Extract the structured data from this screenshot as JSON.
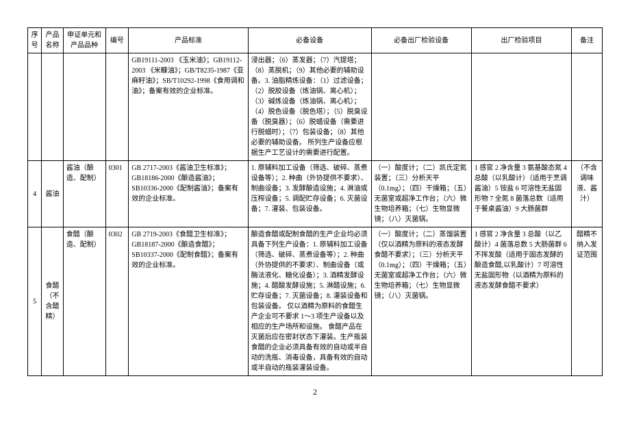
{
  "headers": {
    "seq": "序号",
    "name": "产品名称",
    "unit": "申证单元和产品品种",
    "code": "编号",
    "std": "产品标准",
    "equip": "必备设备",
    "test": "必备出厂检验设备",
    "item": "出厂检验项目",
    "note": "备注"
  },
  "rows": [
    {
      "seq": "",
      "name": "",
      "unit": "",
      "code": "",
      "std": "GB19111-2003 《玉米油》；GB19112-2003 《米糠油》；GB/T8235-1987《亚麻籽油》；SB/T10292-1998《食用调和油》；备案有效的企业标准。",
      "equip": "浸出器；（6）蒸发器；（7）汽提塔；（8）蒸脱机；（9）其他必要的辅助设备。3. 油脂精炼设备：（1）过滤设备；（2）脱胶设备（炼油锅、离心机）；（3）碱炼设备（炼油锅、离心机）；（4）脱色设备（脱色塔）；（5）脱臭设备（脱臭器）；（6）脱蜡设备（需要进行脱蜡时）；（7）包装设备；（8）其他必要的辅助设备。\n所列生产设备应根据生产工艺设计的需要进行配置。",
      "test": "",
      "item": "",
      "note": ""
    },
    {
      "seq": "4",
      "name": "酱油",
      "unit": "酱油（酿造、配制）",
      "code": "0301",
      "std": "GB 2717-2003《酱油卫生标准》；GB18186-2000《酿造酱油》；SB10336-2000《配制酱油》；备案有效的企业标准。",
      "equip": "1. 原辅料加工设备（筛选、破碎、蒸煮设备等）；2. 种曲（外协提供不要求）、制曲设备；3. 发酵酿造设施；4. 淋油或压榨设备；5. 调配贮存设备；6. 灭菌设备；7. 灌装、包装设备。",
      "test": "（一）酸度计；（二）凯氏定氮装置；（三）分析天平（0.1mg）；（四）干燥箱；（五）无菌室或超净工作台；（六）微生物培养箱；（七）生物显微镜；（八）灭菌锅。",
      "item": "1 感官 2 净含量 3 氨基酸态氮 4 总酸（以乳酸计）（适用于烹调酱油）5 铵盐 6 可溶性无盐固形物 7 全氮 8 菌落总数（适用于餐桌酱油）9 大肠菌群",
      "note": "（不含调味液、酱汁）"
    },
    {
      "seq": "5",
      "name": "食醋（不含醋精）",
      "unit": "食醋（酿造、配制）",
      "code": "0302",
      "std": "GB 2719-2003《食醋卫生标准》；GB18187-2000《酿造食醋》；SB10337-2000《配制食醋》；备案有效的企业标准。",
      "equip": "酿造食醋或配制食醋的生产企业均必须具备下列生产设备：1. 原辅料加工设备（筛选、破碎、蒸煮设备等）；2. 种曲（外协提供的不要求）、制曲设备（或酶法液化、糖化设备）；3. 酒精发酵设施；4. 醋酸发酵设施；5. 淋醋设施；6. 贮存设备；7. 灭菌设备；8. 灌装设备和包装设备。\n仅以酒精为原料的食醋生产企业可不要求 1～3 项生产设备以及相应的生产场所和设施。\n食醋产品在灭菌后应在密封状态下灌装。生产瓶装食醋的企业必须具备有效的自动或半自动的洗瓶、消毒设备，具备有效的自动或半自动的瓶装灌装设备。",
      "test": "（一）酸度计；（二）蒸馏装置（仅以酒精为原料的液态发酵食醋不要求）；（三）分析天平（0.1mg）；（四）干燥箱；（五）无菌室或超净工作台；（六）微生物培养箱；（七）生物显微镜；（八）灭菌锅。",
      "item": "1 感官 2 净含量 3 总酸（以乙酸计）4 菌落总数 5 大肠菌群 6 不挥发酸（适用于固态发酵的酿造食醋,以乳酸计）7 可溶性无盐固形物（以酒精为原料的液态发酵食醋不要求）",
      "note": "醋精不纳入发证范围"
    }
  ],
  "pageNumber": "2"
}
